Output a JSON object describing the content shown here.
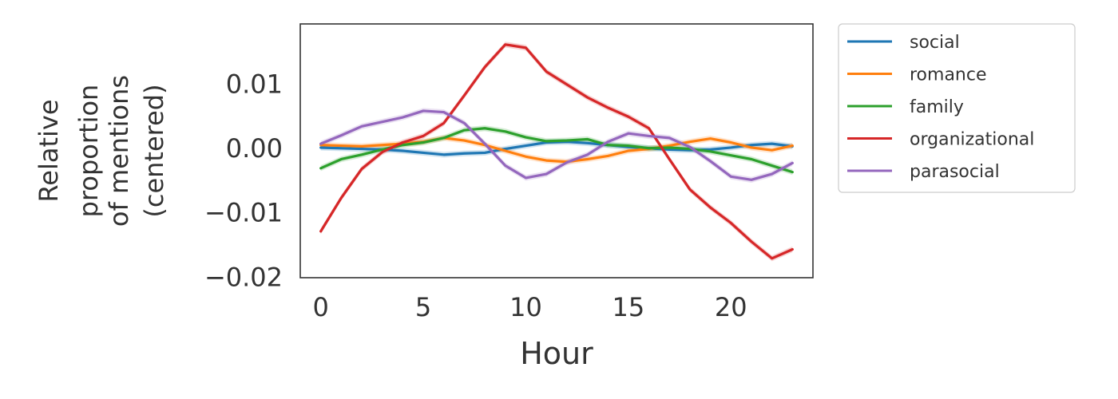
{
  "chart_data": {
    "type": "line",
    "title": "",
    "xlabel": "Hour",
    "ylabel_lines": [
      "Relative",
      "proportion",
      "of mentions",
      "(centered)"
    ],
    "xlim": [
      -1,
      24
    ],
    "ylim": [
      -0.0202,
      0.0192
    ],
    "xticks": [
      0,
      5,
      10,
      15,
      20
    ],
    "xtick_labels": [
      "0",
      "5",
      "10",
      "15",
      "20"
    ],
    "yticks": [
      0.01,
      0.0,
      -0.01,
      -0.02
    ],
    "ytick_labels": [
      "0.01",
      "0.00",
      "−0.01",
      "−0.02"
    ],
    "grid": false,
    "legend_position": "outside-right-top",
    "x": [
      0,
      1,
      2,
      3,
      4,
      5,
      6,
      7,
      8,
      9,
      10,
      11,
      12,
      13,
      14,
      15,
      16,
      17,
      18,
      19,
      20,
      21,
      22,
      23
    ],
    "series": [
      {
        "name": "social",
        "color": "#1f77b4",
        "values": [
          0.0,
          -0.0001,
          -0.0002,
          -0.0003,
          -0.0005,
          -0.0008,
          -0.0011,
          -0.0009,
          -0.0008,
          -0.0002,
          0.0003,
          0.0008,
          0.0009,
          0.0007,
          0.0004,
          0.0001,
          -0.0001,
          -0.0003,
          -0.0004,
          -0.0003,
          0.0,
          0.0004,
          0.0006,
          0.0002
        ]
      },
      {
        "name": "romance",
        "color": "#ff7f0e",
        "values": [
          0.0004,
          0.0003,
          0.0002,
          0.0004,
          0.0006,
          0.0009,
          0.0015,
          0.0011,
          0.0004,
          -0.0005,
          -0.0014,
          -0.002,
          -0.0022,
          -0.0018,
          -0.0013,
          -0.0005,
          -0.0002,
          0.0003,
          0.0009,
          0.0014,
          0.0008,
          0.0,
          -0.0004,
          0.0003
        ]
      },
      {
        "name": "family",
        "color": "#2ca02c",
        "values": [
          -0.0032,
          -0.0018,
          -0.0011,
          -0.0003,
          0.0004,
          0.0008,
          0.0015,
          0.0027,
          0.003,
          0.0025,
          0.0016,
          0.001,
          0.0011,
          0.0013,
          0.0004,
          0.0003,
          -0.0001,
          0.0,
          -0.0002,
          -0.0006,
          -0.0012,
          -0.0018,
          -0.0028,
          -0.0038
        ]
      },
      {
        "name": "organizational",
        "color": "#d62728",
        "values": [
          -0.013,
          -0.0078,
          -0.0033,
          -0.0007,
          0.0008,
          0.0018,
          0.0038,
          0.0081,
          0.0125,
          0.016,
          0.0155,
          0.0118,
          0.0098,
          0.0078,
          0.0062,
          0.0048,
          0.003,
          -0.0018,
          -0.0065,
          -0.0093,
          -0.0117,
          -0.0146,
          -0.0172,
          -0.0158
        ]
      },
      {
        "name": "parasocial",
        "color": "#9467bd",
        "values": [
          0.0006,
          0.0019,
          0.0033,
          0.004,
          0.0047,
          0.0057,
          0.0055,
          0.0038,
          0.0006,
          -0.0028,
          -0.0047,
          -0.0041,
          -0.0023,
          -0.0011,
          0.0009,
          0.0022,
          0.0018,
          0.0015,
          0.0001,
          -0.0021,
          -0.0045,
          -0.005,
          -0.0041,
          -0.0024
        ]
      }
    ]
  }
}
